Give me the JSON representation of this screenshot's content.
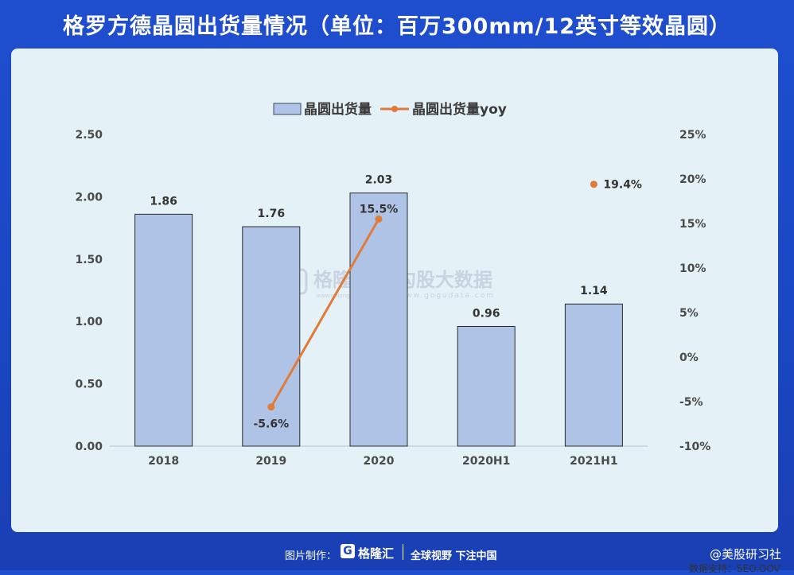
{
  "title": "格罗方德晶圆出货量情况（单位：百万300mm/12英寸等效晶圆）",
  "source_label": "数据支持：SEO.OOV",
  "footer": {
    "made_by": "图片制作：",
    "logo_text": "格隆汇",
    "slogan": "全球视野 下注中国",
    "handle": "@美股研习社"
  },
  "watermark": {
    "left": "格隆汇",
    "right": "勾股大数据",
    "left_url": "www.gelonghui.com",
    "right_url": "www.gogudata.com"
  },
  "chart_data": {
    "type": "bar",
    "categories": [
      "2018",
      "2019",
      "2020",
      "2020H1",
      "2021H1"
    ],
    "series": [
      {
        "name": "晶圆出货量",
        "type": "bar",
        "axis": "left",
        "values": [
          1.86,
          1.76,
          2.03,
          0.96,
          1.14
        ],
        "labels": [
          "1.86",
          "1.76",
          "2.03",
          "0.96",
          "1.14"
        ],
        "color": "#aec3e6"
      },
      {
        "name": "晶圆出货量yoy",
        "type": "line",
        "axis": "right",
        "values": [
          null,
          -5.6,
          15.5,
          null,
          19.4
        ],
        "labels": [
          "",
          "-5.6%",
          "15.5%",
          "",
          "19.4%"
        ],
        "color": "#e07b39"
      }
    ],
    "y_left": {
      "min": 0,
      "max": 2.5,
      "ticks": [
        "0.00",
        "0.50",
        "1.00",
        "1.50",
        "2.00",
        "2.50"
      ]
    },
    "y_right": {
      "min": -10,
      "max": 25,
      "ticks": [
        "-10%",
        "-5%",
        "0%",
        "5%",
        "10%",
        "15%",
        "20%",
        "25%"
      ]
    },
    "legend_position": "top-center",
    "grid": false
  }
}
